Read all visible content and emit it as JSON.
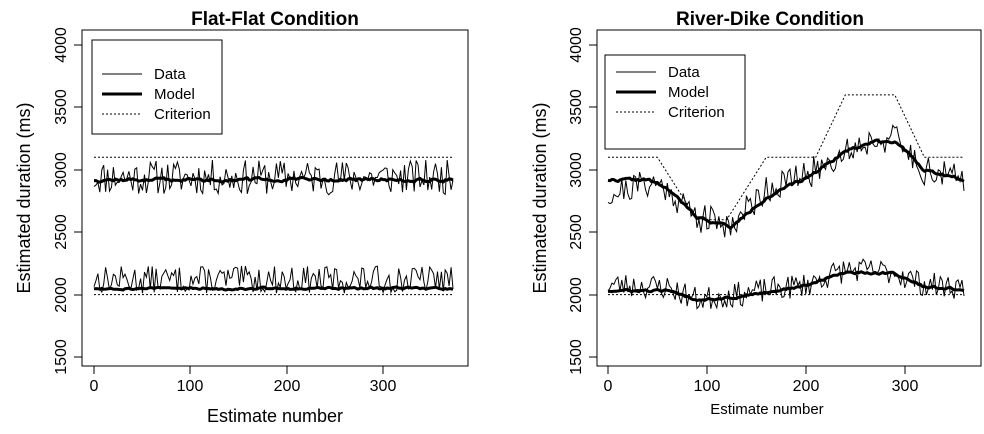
{
  "chart_data": [
    {
      "type": "line",
      "title": "Flat-Flat Condition",
      "xlabel": "Estimate number",
      "ylabel": "Estimated duration (ms)",
      "xlim": [
        0,
        370
      ],
      "ylim": [
        1500,
        4000
      ],
      "x_ticks": [
        "0",
        "100",
        "200",
        "300"
      ],
      "y_ticks": [
        "1500",
        "2000",
        "2500",
        "3000",
        "3500",
        "4000"
      ],
      "legend": {
        "position": "top-left",
        "entries": [
          "Data",
          "Model",
          "Criterion"
        ]
      },
      "series": [
        {
          "name": "Data",
          "role": "data-upper",
          "base": 2940,
          "noise": 140,
          "seed": 11,
          "x_end": 370
        },
        {
          "name": "Model",
          "role": "model-upper",
          "base": 2920,
          "noise": 30,
          "seed": 12,
          "x_end": 370
        },
        {
          "name": "Criterion",
          "role": "criterion-upper",
          "points": [
            [
              0,
              3100
            ],
            [
              370,
              3100
            ]
          ]
        },
        {
          "name": "Data",
          "role": "data-lower",
          "base": 2120,
          "noise": 110,
          "seed": 13,
          "x_end": 370
        },
        {
          "name": "Model",
          "role": "model-lower",
          "base": 2050,
          "noise": 20,
          "seed": 14,
          "x_end": 370
        },
        {
          "name": "Criterion",
          "role": "criterion-lower",
          "points": [
            [
              0,
              2000
            ],
            [
              370,
              2000
            ]
          ]
        }
      ]
    },
    {
      "type": "line",
      "title": "River-Dike Condition",
      "xlabel": "Estimate number",
      "ylabel": "Estimated duration (ms)",
      "xlim": [
        0,
        360
      ],
      "ylim": [
        1500,
        4000
      ],
      "x_ticks": [
        "0",
        "100",
        "200",
        "300"
      ],
      "y_ticks": [
        "1500",
        "2000",
        "2500",
        "3000",
        "3500",
        "4000"
      ],
      "legend": {
        "position": "top-left",
        "entries": [
          "Data",
          "Model",
          "Criterion"
        ]
      },
      "series": [
        {
          "name": "Criterion",
          "role": "criterion-upper",
          "points": [
            [
              0,
              3100
            ],
            [
              50,
              3100
            ],
            [
              90,
              2600
            ],
            [
              120,
              2600
            ],
            [
              160,
              3100
            ],
            [
              210,
              3100
            ],
            [
              240,
              3600
            ],
            [
              290,
              3600
            ],
            [
              320,
              3100
            ],
            [
              360,
              3100
            ]
          ]
        },
        {
          "name": "Data",
          "role": "data-upper",
          "points": [
            [
              0,
              2800
            ],
            [
              40,
              2900
            ],
            [
              60,
              2850
            ],
            [
              90,
              2620
            ],
            [
              125,
              2560
            ],
            [
              160,
              2850
            ],
            [
              200,
              2950
            ],
            [
              240,
              3150
            ],
            [
              270,
              3250
            ],
            [
              290,
              3250
            ],
            [
              320,
              3000
            ],
            [
              360,
              2920
            ]
          ],
          "noise": 120,
          "seed": 21
        },
        {
          "name": "Model",
          "role": "model-upper",
          "points": [
            [
              0,
              2920
            ],
            [
              40,
              2920
            ],
            [
              60,
              2850
            ],
            [
              90,
              2620
            ],
            [
              125,
              2540
            ],
            [
              160,
              2780
            ],
            [
              200,
              2930
            ],
            [
              240,
              3150
            ],
            [
              270,
              3230
            ],
            [
              290,
              3230
            ],
            [
              320,
              3000
            ],
            [
              360,
              2920
            ]
          ],
          "noise": 25,
          "seed": 22
        },
        {
          "name": "Data",
          "role": "data-lower",
          "points": [
            [
              0,
              2080
            ],
            [
              60,
              2060
            ],
            [
              90,
              1960
            ],
            [
              130,
              2000
            ],
            [
              200,
              2080
            ],
            [
              240,
              2200
            ],
            [
              290,
              2180
            ],
            [
              320,
              2080
            ],
            [
              360,
              2060
            ]
          ],
          "noise": 100,
          "seed": 23
        },
        {
          "name": "Model",
          "role": "model-lower",
          "points": [
            [
              0,
              2030
            ],
            [
              60,
              2030
            ],
            [
              90,
              1960
            ],
            [
              130,
              1980
            ],
            [
              200,
              2070
            ],
            [
              240,
              2180
            ],
            [
              290,
              2170
            ],
            [
              320,
              2060
            ],
            [
              360,
              2040
            ]
          ],
          "noise": 20,
          "seed": 24
        },
        {
          "name": "Criterion",
          "role": "criterion-lower",
          "points": [
            [
              0,
              2000
            ],
            [
              360,
              2000
            ]
          ]
        }
      ]
    }
  ]
}
